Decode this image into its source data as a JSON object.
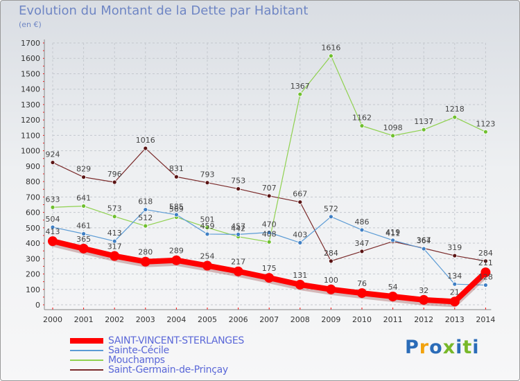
{
  "title": "Evolution du Montant de la Dette par Habitant",
  "unit_label": "(en €)",
  "logo": {
    "text": "Proxiti",
    "colors": [
      "#2b6cb8",
      "#f2a20d",
      "#2b6cb8",
      "#78b82a",
      "#2b6cb8",
      "#78b82a",
      "#2b6cb8"
    ]
  },
  "chart_data": {
    "type": "line",
    "title": "Evolution du Montant de la Dette par Habitant",
    "ylabel": "(en €)",
    "xlabel": "",
    "ylim": [
      0,
      1700
    ],
    "y_ticks": [
      0,
      100,
      200,
      300,
      400,
      500,
      600,
      700,
      800,
      900,
      1000,
      1100,
      1200,
      1300,
      1400,
      1500,
      1600,
      1700
    ],
    "grid": true,
    "legend_position": "bottom-left",
    "categories": [
      "2000",
      "2001",
      "2002",
      "2003",
      "2004",
      "2005",
      "2006",
      "2007",
      "2008",
      "2009",
      "2010",
      "2011",
      "2012",
      "2013",
      "2014"
    ],
    "series": [
      {
        "name": "SAINT-VINCENT-STERLANGES",
        "color": "#ff0000",
        "width": 8,
        "marker_color": "#ff0000",
        "marker_radius": 7,
        "values": [
          413,
          365,
          317,
          280,
          289,
          254,
          217,
          175,
          131,
          100,
          76,
          54,
          32,
          21,
          211
        ]
      },
      {
        "name": "Sainte-Cécile",
        "color": "#5b9bd5",
        "width": 1.2,
        "marker_color": "#3f7fc4",
        "marker_radius": 3,
        "values": [
          504,
          461,
          413,
          618,
          585,
          459,
          457,
          470,
          403,
          572,
          486,
          419,
          364,
          134,
          128
        ]
      },
      {
        "name": "Mouchamps",
        "color": "#8fd14f",
        "width": 1.2,
        "marker_color": "#6fbf2f",
        "marker_radius": 3,
        "values": [
          633,
          641,
          573,
          512,
          569,
          501,
          442,
          408,
          1367,
          1616,
          1162,
          1098,
          1137,
          1218,
          1123
        ]
      },
      {
        "name": "Saint-Germain-de-Prinçay",
        "color": "#7a2a2a",
        "width": 1.2,
        "marker_color": "#5a1414",
        "marker_radius": 3,
        "values": [
          924,
          829,
          796,
          1016,
          831,
          793,
          753,
          707,
          667,
          284,
          347,
          411,
          367,
          319,
          284
        ]
      }
    ]
  }
}
